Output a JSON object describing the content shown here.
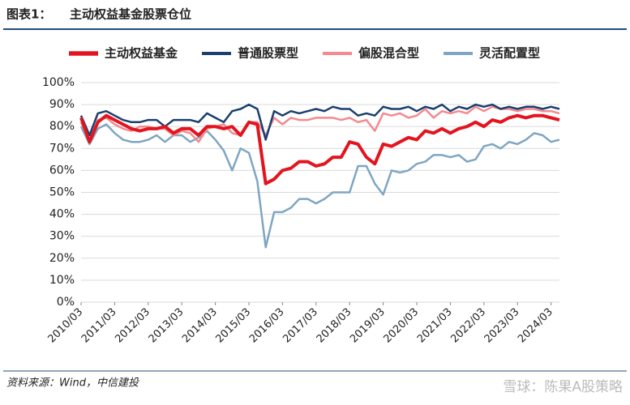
{
  "header": {
    "label": "图表1：",
    "title": "主动权益基金股票仓位"
  },
  "chart_data": {
    "type": "line",
    "categories": [
      "2010/03",
      null,
      null,
      null,
      "2011/03",
      null,
      null,
      null,
      "2012/03",
      null,
      null,
      null,
      "2013/03",
      null,
      null,
      null,
      "2014/03",
      null,
      null,
      null,
      "2015/03",
      null,
      null,
      null,
      "2016/03",
      null,
      null,
      null,
      "2017/03",
      null,
      null,
      null,
      "2018/03",
      null,
      null,
      null,
      "2019/03",
      null,
      null,
      null,
      "2020/03",
      null,
      null,
      null,
      "2021/03",
      null,
      null,
      null,
      "2022/03",
      null,
      null,
      null,
      "2023/03",
      null,
      null,
      null,
      "2024/03",
      null
    ],
    "series": [
      {
        "name": "主动权益基金",
        "color": "#e3141e",
        "width": 4,
        "values": [
          84,
          73,
          82,
          85,
          83,
          81,
          79,
          78,
          79,
          79,
          80,
          77,
          79,
          79,
          76,
          80,
          80,
          79,
          80,
          76,
          82,
          81,
          54,
          56,
          60,
          61,
          64,
          64,
          62,
          63,
          66,
          66,
          73,
          72,
          66,
          63,
          72,
          71,
          73,
          75,
          74,
          78,
          77,
          79,
          77,
          79,
          80,
          82,
          80,
          83,
          82,
          84,
          85,
          84,
          85,
          85,
          84,
          83
        ]
      },
      {
        "name": "普通股票型",
        "color": "#1a3f6e",
        "width": 2.5,
        "values": [
          85,
          76,
          86,
          87,
          85,
          83,
          82,
          82,
          83,
          83,
          80,
          83,
          83,
          83,
          82,
          86,
          84,
          82,
          87,
          88,
          90,
          88,
          74,
          87,
          85,
          87,
          86,
          87,
          88,
          87,
          89,
          88,
          88,
          85,
          86,
          85,
          89,
          88,
          88,
          89,
          87,
          89,
          88,
          90,
          87,
          89,
          88,
          90,
          89,
          90,
          88,
          89,
          88,
          89,
          89,
          88,
          89,
          88
        ]
      },
      {
        "name": "偏股混合型",
        "color": "#f4898f",
        "width": 2.5,
        "values": [
          82,
          73,
          83,
          84,
          81,
          79,
          78,
          80,
          80,
          79,
          79,
          76,
          78,
          77,
          73,
          79,
          80,
          81,
          77,
          76,
          82,
          82,
          76,
          84,
          81,
          84,
          83,
          83,
          84,
          84,
          84,
          83,
          84,
          82,
          83,
          78,
          86,
          85,
          86,
          84,
          85,
          88,
          84,
          87,
          86,
          87,
          86,
          89,
          87,
          89,
          88,
          88,
          87,
          88,
          88,
          87,
          87,
          86
        ]
      },
      {
        "name": "灵活配置型",
        "color": "#7ea6c2",
        "width": 2.5,
        "values": [
          80,
          72,
          79,
          81,
          77,
          74,
          73,
          73,
          74,
          76,
          73,
          76,
          76,
          73,
          75,
          78,
          74,
          69,
          60,
          70,
          68,
          55,
          25,
          41,
          41,
          43,
          47,
          47,
          45,
          47,
          50,
          50,
          50,
          62,
          62,
          54,
          49,
          60,
          59,
          60,
          63,
          64,
          67,
          67,
          66,
          67,
          64,
          65,
          71,
          72,
          70,
          73,
          72,
          74,
          77,
          76,
          73,
          74
        ]
      }
    ],
    "ylim": [
      0,
      100
    ],
    "yticks": [
      {
        "value": 0,
        "label": "0%"
      },
      {
        "value": 10,
        "label": "10%"
      },
      {
        "value": 20,
        "label": "20%"
      },
      {
        "value": 30,
        "label": "30%"
      },
      {
        "value": 40,
        "label": "40%"
      },
      {
        "value": 50,
        "label": "50%"
      },
      {
        "value": 60,
        "label": "60%"
      },
      {
        "value": 70,
        "label": "70%"
      },
      {
        "value": 80,
        "label": "80%"
      },
      {
        "value": 90,
        "label": "90%"
      },
      {
        "value": 100,
        "label": "100%"
      }
    ],
    "grid": true,
    "legend_position": "top"
  },
  "source": "资料来源：Wind，中信建投",
  "watermark": "雪球：陈果A股策略"
}
